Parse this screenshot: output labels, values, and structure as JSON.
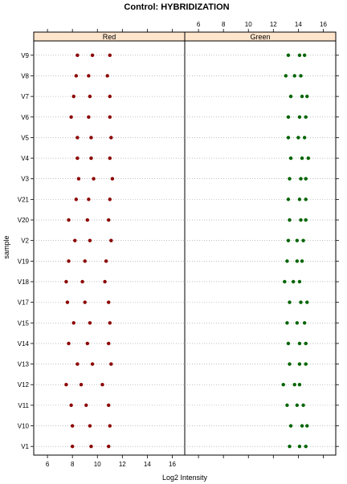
{
  "chart_data": {
    "type": "scatter",
    "title": "Control: HYBRIDIZATION",
    "xlabel": "Log2 Intensity",
    "ylabel": "sample",
    "xlim": [
      4.9,
      17.0
    ],
    "x_ticks": [
      6,
      8,
      10,
      12,
      14,
      16
    ],
    "grid": "dotted horizontal lines per sample",
    "samples": [
      "V1",
      "V10",
      "V11",
      "V12",
      "V13",
      "V14",
      "V15",
      "V17",
      "V18",
      "V19",
      "V2",
      "V20",
      "V21",
      "V3",
      "V4",
      "V5",
      "V6",
      "V7",
      "V8",
      "V9"
    ],
    "panels": [
      {
        "name": "Red",
        "color": "#8b0000",
        "strip_color": "#ffe5cc",
        "values": {
          "V1": [
            8.0,
            9.5,
            10.9
          ],
          "V10": [
            8.0,
            9.4,
            11.0
          ],
          "V11": [
            7.9,
            9.1,
            10.9
          ],
          "V12": [
            7.5,
            8.7,
            10.4
          ],
          "V13": [
            8.4,
            9.6,
            11.1
          ],
          "V14": [
            7.7,
            9.2,
            10.9
          ],
          "V15": [
            8.1,
            9.4,
            11.0
          ],
          "V17": [
            7.6,
            9.0,
            10.9
          ],
          "V18": [
            7.5,
            8.8,
            10.6
          ],
          "V19": [
            7.7,
            9.0,
            10.7
          ],
          "V2": [
            8.2,
            9.4,
            11.1
          ],
          "V20": [
            7.7,
            9.2,
            10.9
          ],
          "V21": [
            8.3,
            9.3,
            11.0
          ],
          "V3": [
            8.5,
            9.7,
            11.2
          ],
          "V4": [
            8.4,
            9.5,
            11.0
          ],
          "V5": [
            8.4,
            9.5,
            11.1
          ],
          "V6": [
            7.9,
            9.3,
            11.0
          ],
          "V7": [
            8.1,
            9.4,
            11.0
          ],
          "V8": [
            8.3,
            9.3,
            10.8
          ],
          "V9": [
            8.4,
            9.6,
            11.0
          ]
        }
      },
      {
        "name": "Green",
        "color": "#006400",
        "strip_color": "#ffe5cc",
        "values": {
          "V1": [
            13.3,
            14.1,
            14.6
          ],
          "V10": [
            13.4,
            14.3,
            14.7
          ],
          "V11": [
            13.1,
            13.9,
            14.4
          ],
          "V12": [
            12.8,
            13.7,
            14.1
          ],
          "V13": [
            13.3,
            14.1,
            14.6
          ],
          "V14": [
            13.2,
            14.1,
            14.6
          ],
          "V15": [
            13.1,
            13.9,
            14.5
          ],
          "V17": [
            13.3,
            14.2,
            14.7
          ],
          "V18": [
            12.9,
            13.6,
            14.1
          ],
          "V19": [
            13.1,
            13.9,
            14.3
          ],
          "V2": [
            13.2,
            13.9,
            14.4
          ],
          "V20": [
            13.3,
            14.2,
            14.6
          ],
          "V21": [
            13.2,
            14.1,
            14.6
          ],
          "V3": [
            13.3,
            14.2,
            14.6
          ],
          "V4": [
            13.4,
            14.3,
            14.8
          ],
          "V5": [
            13.2,
            14.0,
            14.5
          ],
          "V6": [
            13.2,
            14.1,
            14.6
          ],
          "V7": [
            13.4,
            14.3,
            14.7
          ],
          "V8": [
            13.0,
            13.7,
            14.2
          ],
          "V9": [
            13.2,
            14.1,
            14.5
          ]
        }
      }
    ]
  }
}
